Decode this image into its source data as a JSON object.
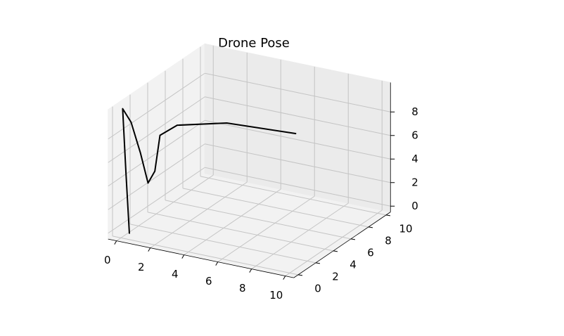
{
  "chart_data": {
    "type": "line3d",
    "title": "Drone Pose",
    "x": [
      0.5,
      0.3,
      0.1,
      0.6,
      1.1,
      1.5,
      1.8,
      2.0,
      2.5,
      4.6,
      8.3
    ],
    "y": [
      0,
      0,
      0,
      0,
      0.1,
      0.2,
      0.4,
      0.6,
      1.6,
      3.2,
      4.0
    ],
    "z": [
      0,
      5,
      10.5,
      9.5,
      7,
      4.5,
      5.5,
      8.5,
      9.0,
      9.0,
      8.8
    ],
    "color": "#000000",
    "xlim": [
      -0.5,
      10.5
    ],
    "ylim": [
      -0.5,
      10.5
    ],
    "zlim": [
      -0.5,
      10.5
    ],
    "xticks": [
      0,
      2,
      4,
      6,
      8,
      10
    ],
    "yticks": [
      0,
      2,
      4,
      6,
      8,
      10
    ],
    "zticks": [
      0,
      2,
      4,
      6,
      8
    ],
    "grid": true
  }
}
